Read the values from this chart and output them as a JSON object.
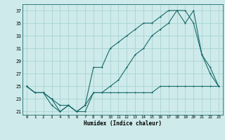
{
  "title": "",
  "xlabel": "Humidex (Indice chaleur)",
  "bg_color": "#ceeaea",
  "grid_color": "#a8d4d4",
  "line_color": "#1a6b6b",
  "xlim": [
    -0.5,
    23.5
  ],
  "ylim": [
    20.5,
    38.0
  ],
  "xticks": [
    0,
    1,
    2,
    3,
    4,
    5,
    6,
    7,
    8,
    9,
    10,
    11,
    12,
    13,
    14,
    15,
    16,
    17,
    18,
    19,
    20,
    21,
    22,
    23
  ],
  "yticks": [
    21,
    23,
    25,
    27,
    29,
    31,
    33,
    35,
    37
  ],
  "series1_x": [
    0,
    1,
    2,
    3,
    4,
    5,
    6,
    7,
    8,
    9,
    10,
    11,
    12,
    13,
    14,
    15,
    16,
    17,
    18,
    19,
    20,
    21,
    22,
    23
  ],
  "series1_y": [
    25,
    24,
    24,
    22,
    21,
    22,
    21,
    21,
    24,
    24,
    24,
    24,
    24,
    24,
    24,
    24,
    25,
    25,
    25,
    25,
    25,
    25,
    25,
    25
  ],
  "series2_x": [
    0,
    1,
    2,
    3,
    4,
    5,
    6,
    7,
    8,
    9,
    10,
    11,
    12,
    13,
    14,
    15,
    16,
    17,
    18,
    19,
    20,
    21,
    22,
    23
  ],
  "series2_y": [
    25,
    24,
    24,
    23,
    21,
    22,
    21,
    22,
    28,
    28,
    31,
    32,
    33,
    34,
    35,
    35,
    36,
    37,
    37,
    35,
    37,
    30,
    27,
    25
  ],
  "series3_x": [
    0,
    1,
    2,
    3,
    4,
    5,
    6,
    7,
    8,
    9,
    10,
    11,
    12,
    13,
    14,
    15,
    16,
    17,
    18,
    19,
    20,
    21,
    22,
    23
  ],
  "series3_y": [
    25,
    24,
    24,
    23,
    22,
    22,
    21,
    22,
    24,
    24,
    25,
    26,
    28,
    30,
    31,
    33,
    34,
    35,
    37,
    37,
    35,
    30,
    28,
    25
  ]
}
